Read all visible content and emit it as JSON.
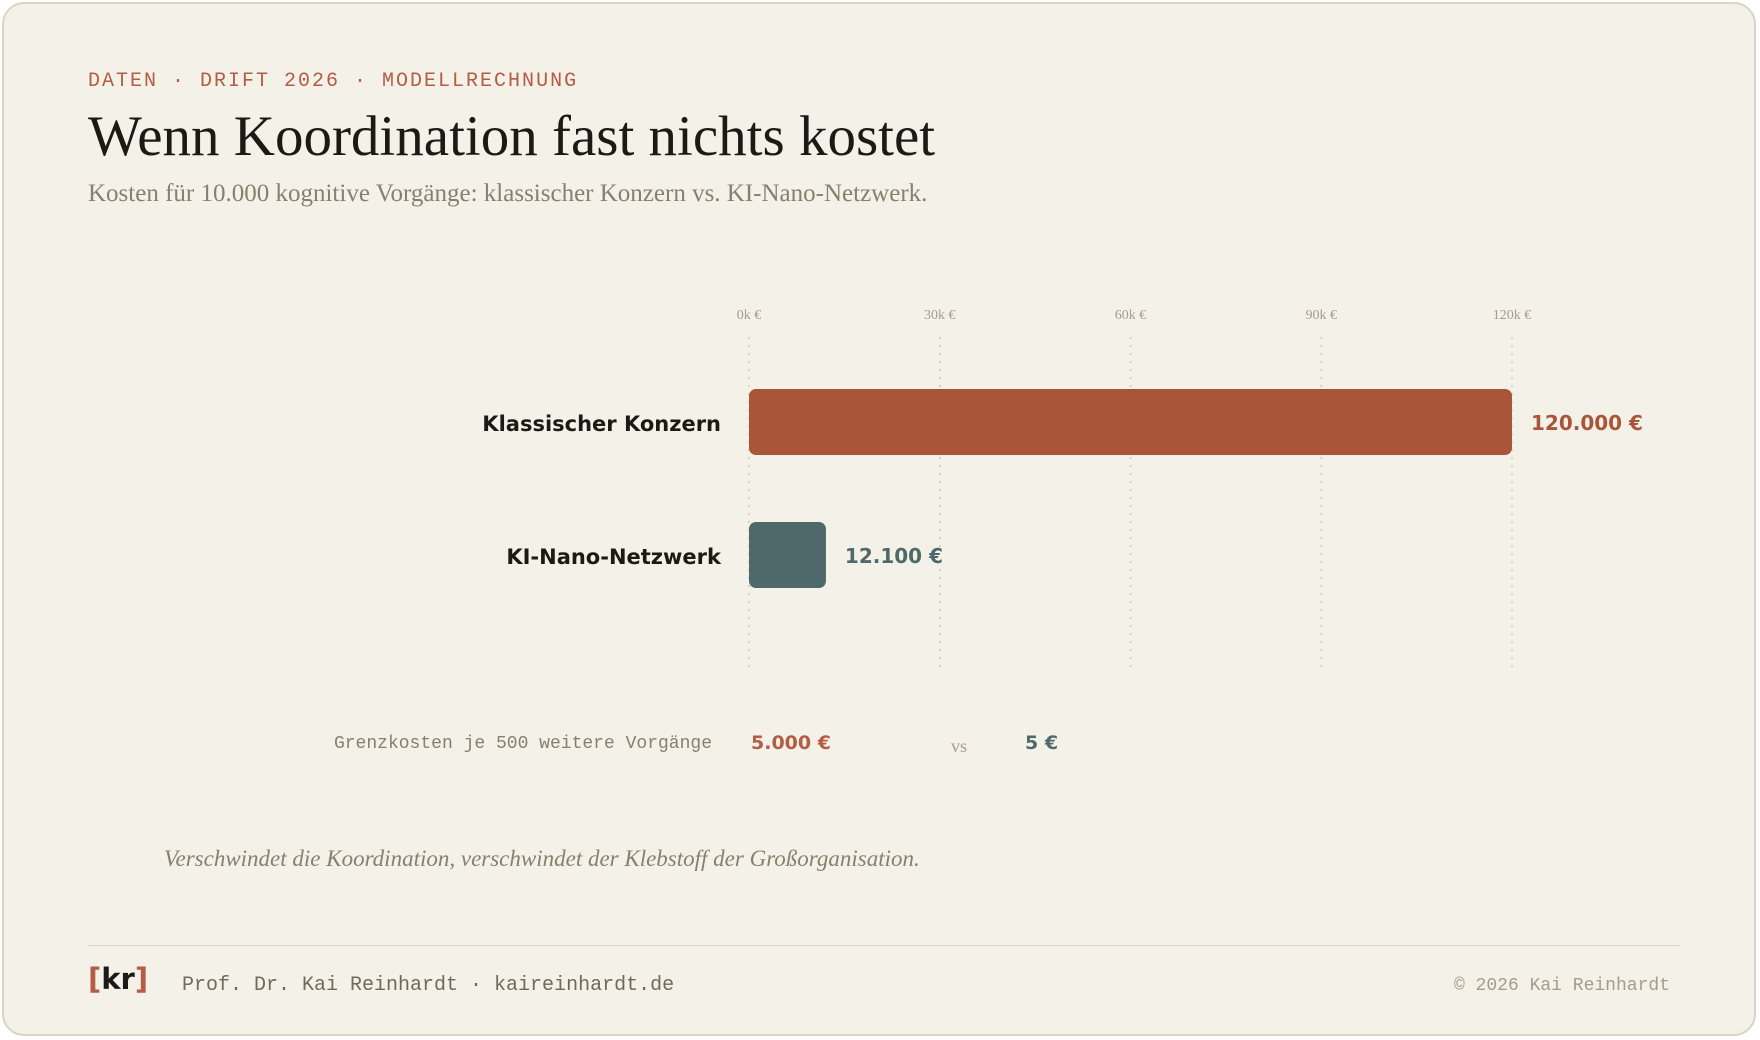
{
  "header": {
    "kicker": "DATEN · DRIFT 2026 · MODELLRECHNUNG",
    "title": "Wenn Koordination fast nichts kostet",
    "subtitle": "Kosten für 10.000 kognitive Vorgänge: klassischer Konzern vs. KI-Nano-Netzwerk."
  },
  "chart_data": {
    "type": "bar",
    "orientation": "horizontal",
    "title": "Wenn Koordination fast nichts kostet",
    "subtitle": "Kosten für 10.000 kognitive Vorgänge: klassischer Konzern vs. KI-Nano-Netzwerk.",
    "categories": [
      "Klassischer Konzern",
      "KI-Nano-Netzwerk"
    ],
    "values": [
      120000,
      12100
    ],
    "value_labels": [
      "120.000 €",
      "12.100 €"
    ],
    "colors": [
      "#a85539",
      "#4f696a"
    ],
    "xlim": [
      0,
      120000
    ],
    "xticks": [
      0,
      30000,
      60000,
      90000,
      120000
    ],
    "xtick_labels": [
      "0k €",
      "30k €",
      "60k €",
      "90k €",
      "120k €"
    ],
    "xaxis_position": "top",
    "grid": "vertical dotted",
    "legend": "none"
  },
  "marginal": {
    "label": "Grenzkosten je 500 weitere Vorgänge",
    "value_a": "5.000 €",
    "vs": "vs",
    "value_b": "5 €"
  },
  "quote": "Verschwindet die Koordination, verschwindet der Klebstoff der Großorganisation.",
  "footer": {
    "logo_open": "[",
    "logo_letters": "kr",
    "logo_close": "]",
    "author": "Prof. Dr. Kai Reinhardt · kaireinhardt.de",
    "copyright": "© 2026 Kai Reinhardt"
  },
  "colors": {
    "background": "#f4f1e8",
    "accent": "#b45c44",
    "bar_konzern": "#a85539",
    "bar_nano": "#4f696a"
  }
}
